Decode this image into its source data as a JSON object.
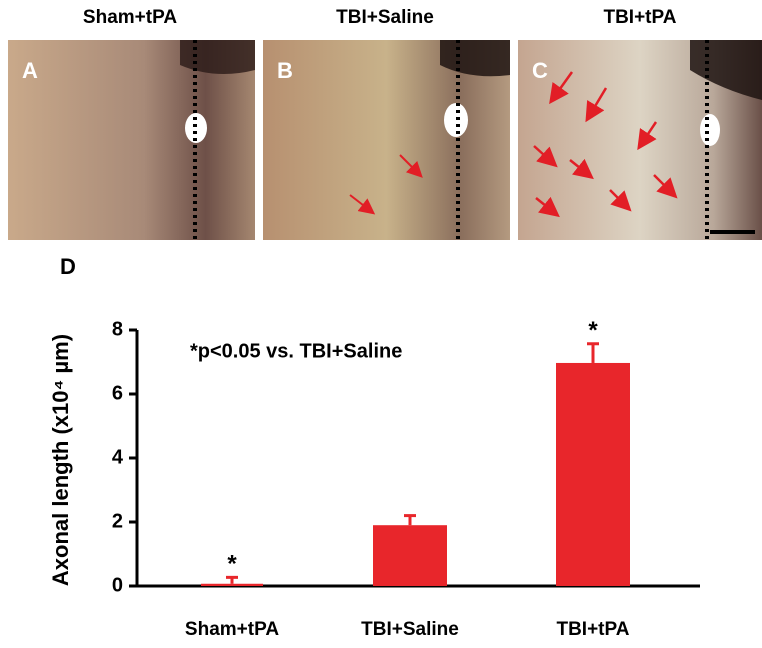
{
  "panels": [
    {
      "letter": "A",
      "title": "Sham+tPA"
    },
    {
      "letter": "B",
      "title": "TBI+Saline"
    },
    {
      "letter": "C",
      "title": "TBI+tPA"
    }
  ],
  "chart_data": {
    "type": "bar",
    "label": "D",
    "ylabel": "Axonal length (x10⁴ µm)",
    "annotation": "*p<0.05 vs. TBI+Saline",
    "categories": [
      "Sham+tPA",
      "TBI+Saline",
      "TBI+tPA"
    ],
    "values": [
      0.07,
      1.9,
      6.97
    ],
    "errors": [
      0.2,
      0.3,
      0.6
    ],
    "markers": [
      "*",
      null,
      "*"
    ],
    "color": "#e8262b",
    "ylim": [
      0,
      8
    ],
    "yticks": [
      0,
      2,
      4,
      6,
      8
    ]
  }
}
